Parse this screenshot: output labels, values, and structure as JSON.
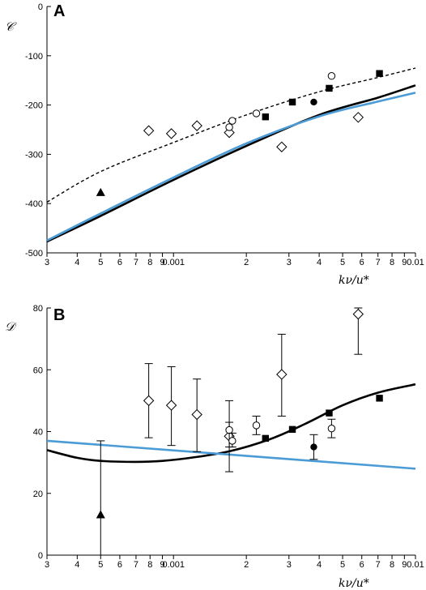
{
  "chart_data": [
    {
      "type": "scatter",
      "panel": "A",
      "ylabel": "𝒞",
      "xlabel": "kν/u*",
      "xscale": "log",
      "xlim": [
        0.0003,
        0.01
      ],
      "ylim": [
        -500,
        0
      ],
      "yticks": [
        0,
        -100,
        -200,
        -300,
        -400,
        -500
      ],
      "xticks": [
        {
          "value": 0.0003,
          "label": "3"
        },
        {
          "value": 0.0004,
          "label": "4"
        },
        {
          "value": 0.0005,
          "label": "5"
        },
        {
          "value": 0.0006,
          "label": "6"
        },
        {
          "value": 0.0007,
          "label": "7"
        },
        {
          "value": 0.0008,
          "label": "8"
        },
        {
          "value": 0.0009,
          "label": "9"
        },
        {
          "value": 0.001,
          "label": "0.001"
        },
        {
          "value": 0.002,
          "label": "2"
        },
        {
          "value": 0.003,
          "label": "3"
        },
        {
          "value": 0.004,
          "label": "4"
        },
        {
          "value": 0.005,
          "label": "5"
        },
        {
          "value": 0.006,
          "label": "6"
        },
        {
          "value": 0.007,
          "label": "7"
        },
        {
          "value": 0.008,
          "label": "8"
        },
        {
          "value": 0.009,
          "label": "9"
        },
        {
          "value": 0.01,
          "label": "0.01"
        }
      ],
      "lines": [
        {
          "style": "solid-black",
          "color": "#000000",
          "x": [
            0.0003,
            0.0005,
            0.001,
            0.002,
            0.004,
            0.007,
            0.01
          ],
          "y": [
            -477,
            -425,
            -352,
            -283,
            -220,
            -185,
            -160
          ]
        },
        {
          "style": "solid-blue",
          "color": "#4a9bd6",
          "x": [
            0.0003,
            0.0005,
            0.001,
            0.002,
            0.004,
            0.007,
            0.01
          ],
          "y": [
            -475,
            -420,
            -347,
            -278,
            -223,
            -193,
            -175
          ]
        },
        {
          "style": "dashed-black",
          "color": "#000000",
          "x": [
            0.0003,
            0.0005,
            0.001,
            0.002,
            0.004,
            0.007,
            0.01
          ],
          "y": [
            -397,
            -335,
            -276,
            -220,
            -173,
            -144,
            -125
          ]
        }
      ],
      "points": [
        {
          "marker": "diamond-open",
          "x": [
            0.00079,
            0.00098,
            0.00125,
            0.0017,
            0.0028,
            0.0058
          ],
          "y": [
            -252,
            -258,
            -242,
            -256,
            -285,
            -225
          ]
        },
        {
          "marker": "circle-open",
          "x": [
            0.0017,
            0.00175,
            0.0022,
            0.0045
          ],
          "y": [
            -245,
            -232,
            -217,
            -141
          ]
        },
        {
          "marker": "square-filled",
          "x": [
            0.0024,
            0.0031,
            0.0044,
            0.0071
          ],
          "y": [
            -224,
            -194,
            -166,
            -136
          ]
        },
        {
          "marker": "circle-filled",
          "x": [
            0.0038
          ],
          "y": [
            -194
          ]
        },
        {
          "marker": "triangle-filled",
          "x": [
            0.0005
          ],
          "y": [
            -378
          ]
        }
      ]
    },
    {
      "type": "scatter",
      "panel": "B",
      "ylabel": "𝒟",
      "xlabel": "kν/u*",
      "xscale": "log",
      "xlim": [
        0.0003,
        0.01
      ],
      "ylim": [
        0,
        80
      ],
      "yticks": [
        0,
        20,
        40,
        60,
        80
      ],
      "xticks": [
        {
          "value": 0.0003,
          "label": "3"
        },
        {
          "value": 0.0004,
          "label": "4"
        },
        {
          "value": 0.0005,
          "label": "5"
        },
        {
          "value": 0.0006,
          "label": "6"
        },
        {
          "value": 0.0007,
          "label": "7"
        },
        {
          "value": 0.0008,
          "label": "8"
        },
        {
          "value": 0.0009,
          "label": "9"
        },
        {
          "value": 0.001,
          "label": "0.001"
        },
        {
          "value": 0.002,
          "label": "2"
        },
        {
          "value": 0.003,
          "label": "3"
        },
        {
          "value": 0.004,
          "label": "4"
        },
        {
          "value": 0.005,
          "label": "5"
        },
        {
          "value": 0.006,
          "label": "6"
        },
        {
          "value": 0.007,
          "label": "7"
        },
        {
          "value": 0.008,
          "label": "8"
        },
        {
          "value": 0.009,
          "label": "9"
        },
        {
          "value": 0.01,
          "label": "0.01"
        }
      ],
      "lines": [
        {
          "style": "solid-black",
          "color": "#000000",
          "x": [
            0.0003,
            0.0004,
            0.0005,
            0.0007,
            0.0009,
            0.0012,
            0.0017,
            0.0025,
            0.0035,
            0.005,
            0.007,
            0.01
          ],
          "y": [
            34,
            31.5,
            30.5,
            30.2,
            30.5,
            31.6,
            33.6,
            37.5,
            42.5,
            48.5,
            52.6,
            55.3
          ]
        },
        {
          "style": "solid-blue",
          "color": "#4a9bd6",
          "x": [
            0.0003,
            0.01
          ],
          "y": [
            37,
            28
          ]
        }
      ],
      "points": [
        {
          "marker": "diamond-open",
          "x": [
            0.00079,
            0.00098,
            0.00125,
            0.0017,
            0.0028,
            0.0058
          ],
          "y": [
            50,
            48.5,
            45.5,
            38.5,
            58.5,
            78
          ],
          "err_low": [
            38,
            35.5,
            33.5,
            27,
            45,
            65
          ],
          "err_high": [
            62,
            61,
            57,
            50,
            71.5,
            80
          ]
        },
        {
          "marker": "circle-open",
          "x": [
            0.0017,
            0.00175,
            0.0022,
            0.0045
          ],
          "y": [
            40.5,
            37,
            42,
            41
          ],
          "err_low": [
            35,
            35,
            39,
            38
          ],
          "err_high": [
            43,
            39.5,
            45,
            44
          ]
        },
        {
          "marker": "square-filled",
          "x": [
            0.0024,
            0.0031,
            0.0044,
            0.0071
          ],
          "y": [
            37.8,
            40.7,
            46,
            50.8
          ]
        },
        {
          "marker": "circle-filled",
          "x": [
            0.0038
          ],
          "y": [
            35
          ],
          "err_low": [
            31
          ],
          "err_high": [
            39
          ]
        },
        {
          "marker": "triangle-filled",
          "x": [
            0.0005
          ],
          "y": [
            13
          ],
          "err_low": [
            0
          ],
          "err_high": [
            37
          ]
        }
      ]
    }
  ],
  "panels": [
    {
      "letter": "A",
      "ylabel": "𝒞",
      "xlabel": "kν/u*"
    },
    {
      "letter": "B",
      "ylabel": "𝒟",
      "xlabel": "kν/u*"
    }
  ]
}
